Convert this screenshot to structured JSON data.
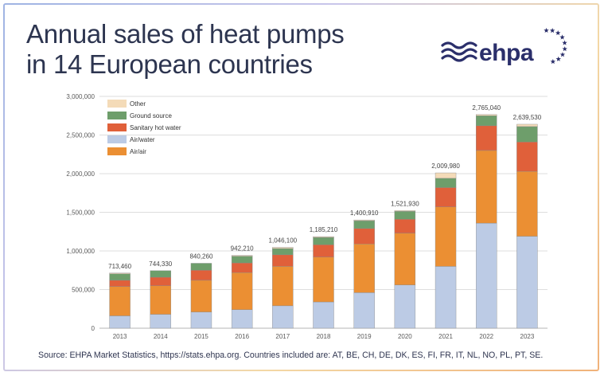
{
  "header": {
    "title_line1": "Annual sales of heat pumps",
    "title_line2": "in 14 European countries",
    "logo_text": "ehpa"
  },
  "footer": {
    "source": "Source: EHPA Market Statistics, https://stats.ehpa.org. Countries included are: AT, BE, CH, DE, DK, ES, FI, FR, IT, NL, NO, PL, PT, SE."
  },
  "colors": {
    "air_water": "#bccbe5",
    "air_air": "#eb8f33",
    "sanitary_hot_water": "#e0603a",
    "ground_source": "#6e9e6b",
    "other": "#f4dbb8",
    "title": "#2d3550",
    "logo_navy": "#2b2f6b"
  },
  "chart_data": {
    "type": "bar",
    "stacked": true,
    "categories": [
      "2013",
      "2014",
      "2015",
      "2016",
      "2017",
      "2018",
      "2019",
      "2020",
      "2021",
      "2022",
      "2023"
    ],
    "ylim": [
      0,
      3000000
    ],
    "yticks": [
      "0",
      "500,000",
      "1,000,000",
      "1,500,000",
      "2,000,000",
      "2,500,000",
      "3,000,000"
    ],
    "ytick_values": [
      0,
      500000,
      1000000,
      1500000,
      2000000,
      2500000,
      3000000
    ],
    "grid": true,
    "legend_position": "top-left",
    "series": [
      {
        "name": "Air/water",
        "color": "#bccbe5",
        "values": [
          160000,
          180000,
          210000,
          240000,
          290000,
          340000,
          460000,
          560000,
          800000,
          1360000,
          1190000
        ]
      },
      {
        "name": "Air/air",
        "color": "#eb8f33",
        "values": [
          380000,
          370000,
          410000,
          480000,
          510000,
          580000,
          630000,
          670000,
          770000,
          940000,
          840000
        ]
      },
      {
        "name": "Sanitary hot water",
        "color": "#e0603a",
        "values": [
          80000,
          110000,
          130000,
          125000,
          150000,
          160000,
          200000,
          180000,
          250000,
          320000,
          380000
        ]
      },
      {
        "name": "Ground source",
        "color": "#6e9e6b",
        "values": [
          83460,
          84330,
          90260,
          87210,
          81100,
          95210,
          100910,
          101930,
          119980,
          130040,
          199530
        ]
      },
      {
        "name": "Other",
        "color": "#f4dbb8",
        "values": [
          10000,
          0,
          0,
          10000,
          15000,
          10000,
          10000,
          10000,
          70000,
          15000,
          30000
        ]
      }
    ],
    "totals": [
      "713,460",
      "744,330",
      "840,260",
      "942,210",
      "1,046,100",
      "1,185,210",
      "1,400,910",
      "1,521,930",
      "2,009,980",
      "2,765,040",
      "2,639,530"
    ],
    "legend": [
      {
        "label": "Other",
        "color": "#f4dbb8"
      },
      {
        "label": "Ground source",
        "color": "#6e9e6b"
      },
      {
        "label": "Sanitary hot water",
        "color": "#e0603a"
      },
      {
        "label": "Air/water",
        "color": "#bccbe5"
      },
      {
        "label": "Air/air",
        "color": "#eb8f33"
      }
    ]
  }
}
